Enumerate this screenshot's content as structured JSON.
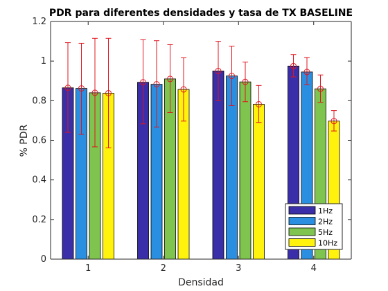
{
  "chart_data": {
    "type": "bar",
    "title": "PDR para diferentes densidades y tasa de TX BASELINE",
    "xlabel": "Densidad",
    "ylabel": "% PDR",
    "categories": [
      "1",
      "2",
      "3",
      "4"
    ],
    "ylim": [
      0,
      1.2
    ],
    "yticks": [
      0,
      0.2,
      0.4,
      0.6,
      0.8,
      1,
      1.2
    ],
    "ytick_labels": [
      "0",
      "0.2",
      "0.4",
      "0.6",
      "0.8",
      "1",
      "1.2"
    ],
    "legend_position": "bottom-right",
    "series": [
      {
        "name": "1Hz",
        "color": "#3a2fa8",
        "values": [
          0.865,
          0.893,
          0.95,
          0.975
        ],
        "err_low": [
          0.64,
          0.683,
          0.8,
          0.92
        ],
        "err_high": [
          1.093,
          1.108,
          1.1,
          1.033
        ]
      },
      {
        "name": "2Hz",
        "color": "#2a8fe0",
        "values": [
          0.862,
          0.883,
          0.925,
          0.945
        ],
        "err_low": [
          0.63,
          0.667,
          0.775,
          0.88
        ],
        "err_high": [
          1.09,
          1.103,
          1.075,
          1.018
        ]
      },
      {
        "name": "5Hz",
        "color": "#7ec44f",
        "values": [
          0.84,
          0.91,
          0.895,
          0.86
        ],
        "err_low": [
          0.567,
          0.74,
          0.795,
          0.792
        ],
        "err_high": [
          1.115,
          1.083,
          0.995,
          0.93
        ]
      },
      {
        "name": "10Hz",
        "color": "#fff30d",
        "values": [
          0.838,
          0.857,
          0.782,
          0.697
        ],
        "err_low": [
          0.562,
          0.697,
          0.69,
          0.647
        ],
        "err_high": [
          1.115,
          1.017,
          0.877,
          0.75
        ]
      }
    ]
  }
}
